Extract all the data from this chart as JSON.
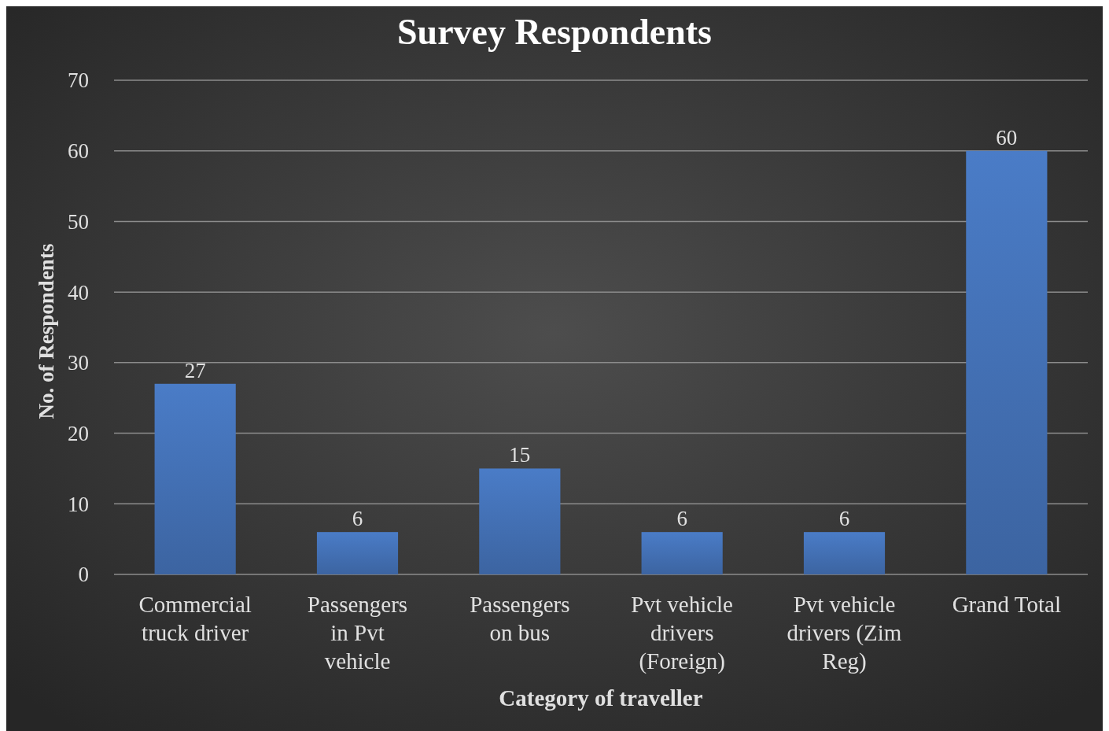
{
  "chart_data": {
    "type": "bar",
    "title": "Survey Respondents",
    "xlabel": "Category of traveller",
    "ylabel": "No. of Respondents",
    "categories": [
      "Commercial truck driver",
      "Passengers in Pvt vehicle",
      "Passengers on bus",
      "Pvt vehicle drivers (Foreign)",
      "Pvt vehicle drivers (Zim Reg)",
      "Grand Total"
    ],
    "values": [
      27,
      6,
      15,
      6,
      6,
      60
    ],
    "color": "#4a7cc7",
    "ylim": [
      0,
      70
    ],
    "yticks": [
      0,
      10,
      20,
      30,
      40,
      50,
      60,
      70
    ],
    "grid": "y",
    "data_labels": true
  }
}
